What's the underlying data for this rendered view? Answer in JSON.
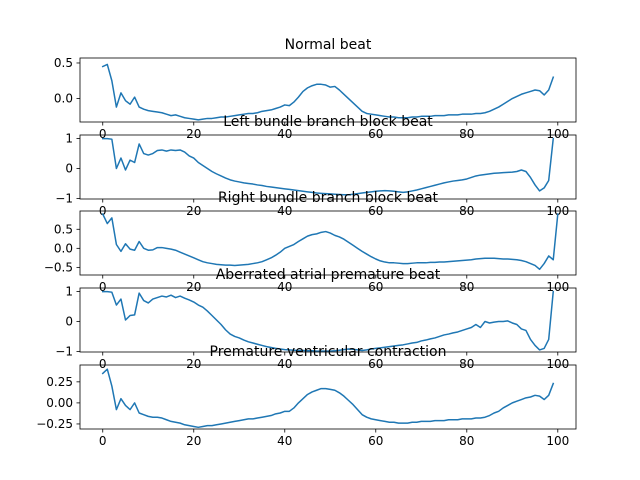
{
  "chart_data": [
    {
      "type": "line",
      "title": "Normal beat",
      "xlim": [
        -5,
        104
      ],
      "ylim": [
        -0.33,
        0.57
      ],
      "xticks": [
        0,
        20,
        40,
        60,
        80,
        100
      ],
      "xtick_labels": [
        "0",
        "20",
        "40",
        "60",
        "80",
        "100"
      ],
      "yticks": [
        0.5,
        0.0
      ],
      "ytick_labels": [
        "0.5",
        "0.0"
      ],
      "series": [
        {
          "values": [
            0.45,
            0.48,
            0.25,
            -0.12,
            0.08,
            -0.03,
            -0.08,
            0.02,
            -0.12,
            -0.15,
            -0.17,
            -0.18,
            -0.19,
            -0.2,
            -0.22,
            -0.24,
            -0.23,
            -0.25,
            -0.27,
            -0.28,
            -0.29,
            -0.3,
            -0.29,
            -0.28,
            -0.28,
            -0.27,
            -0.26,
            -0.26,
            -0.25,
            -0.24,
            -0.23,
            -0.22,
            -0.21,
            -0.21,
            -0.2,
            -0.18,
            -0.17,
            -0.16,
            -0.14,
            -0.12,
            -0.09,
            -0.1,
            -0.05,
            0.02,
            0.1,
            0.15,
            0.18,
            0.2,
            0.2,
            0.19,
            0.16,
            0.17,
            0.12,
            0.06,
            0.0,
            -0.06,
            -0.12,
            -0.18,
            -0.21,
            -0.22,
            -0.23,
            -0.24,
            -0.25,
            -0.26,
            -0.26,
            -0.27,
            -0.27,
            -0.27,
            -0.26,
            -0.26,
            -0.25,
            -0.25,
            -0.25,
            -0.24,
            -0.24,
            -0.24,
            -0.23,
            -0.23,
            -0.23,
            -0.22,
            -0.22,
            -0.22,
            -0.21,
            -0.21,
            -0.2,
            -0.18,
            -0.15,
            -0.12,
            -0.08,
            -0.04,
            0.0,
            0.03,
            0.06,
            0.08,
            0.1,
            0.12,
            0.11,
            0.05,
            0.12,
            0.3
          ]
        }
      ]
    },
    {
      "type": "line",
      "title": "Left bundle branch block beat",
      "xlim": [
        -5,
        104
      ],
      "ylim": [
        -1.02,
        1.12
      ],
      "xticks": [
        0,
        20,
        40,
        60,
        80,
        100
      ],
      "xtick_labels": [
        "0",
        "20",
        "40",
        "60",
        "80",
        "100"
      ],
      "yticks": [
        1,
        0,
        -1
      ],
      "ytick_labels": [
        "1",
        "0",
        "−1"
      ],
      "series": [
        {
          "values": [
            1.0,
            1.0,
            0.98,
            0.0,
            0.35,
            -0.05,
            0.28,
            0.2,
            0.82,
            0.5,
            0.45,
            0.5,
            0.6,
            0.62,
            0.58,
            0.62,
            0.6,
            0.62,
            0.55,
            0.42,
            0.35,
            0.2,
            0.1,
            0.0,
            -0.1,
            -0.18,
            -0.25,
            -0.32,
            -0.38,
            -0.42,
            -0.45,
            -0.48,
            -0.5,
            -0.52,
            -0.55,
            -0.57,
            -0.6,
            -0.62,
            -0.64,
            -0.66,
            -0.68,
            -0.7,
            -0.72,
            -0.74,
            -0.76,
            -0.78,
            -0.8,
            -0.82,
            -0.83,
            -0.84,
            -0.85,
            -0.86,
            -0.87,
            -0.88,
            -0.88,
            -0.86,
            -0.84,
            -0.82,
            -0.8,
            -0.78,
            -0.76,
            -0.75,
            -0.74,
            -0.75,
            -0.76,
            -0.78,
            -0.8,
            -0.78,
            -0.75,
            -0.72,
            -0.68,
            -0.64,
            -0.6,
            -0.56,
            -0.52,
            -0.48,
            -0.45,
            -0.42,
            -0.4,
            -0.38,
            -0.35,
            -0.3,
            -0.25,
            -0.22,
            -0.2,
            -0.18,
            -0.16,
            -0.15,
            -0.14,
            -0.13,
            -0.12,
            -0.1,
            -0.05,
            -0.1,
            -0.3,
            -0.55,
            -0.75,
            -0.65,
            -0.4,
            1.0
          ]
        }
      ]
    },
    {
      "type": "line",
      "title": "Right bundle branch block beat",
      "xlim": [
        -5,
        104
      ],
      "ylim": [
        -0.7,
        0.98
      ],
      "xticks": [
        0,
        20,
        40,
        60,
        80,
        100
      ],
      "xtick_labels": [
        "0",
        "20",
        "40",
        "60",
        "80",
        "100"
      ],
      "yticks": [
        0.5,
        0.0,
        -0.5
      ],
      "ytick_labels": [
        "0.5",
        "0.0",
        "−0.5"
      ],
      "series": [
        {
          "values": [
            0.9,
            0.65,
            0.8,
            0.1,
            -0.08,
            0.12,
            -0.02,
            -0.05,
            0.18,
            0.0,
            -0.05,
            -0.04,
            0.02,
            0.02,
            0.0,
            -0.02,
            -0.05,
            -0.1,
            -0.15,
            -0.2,
            -0.25,
            -0.3,
            -0.35,
            -0.38,
            -0.4,
            -0.42,
            -0.43,
            -0.44,
            -0.44,
            -0.45,
            -0.44,
            -0.43,
            -0.42,
            -0.4,
            -0.38,
            -0.35,
            -0.3,
            -0.25,
            -0.18,
            -0.1,
            0.0,
            0.05,
            0.1,
            0.18,
            0.25,
            0.32,
            0.36,
            0.38,
            0.42,
            0.44,
            0.4,
            0.34,
            0.3,
            0.24,
            0.16,
            0.08,
            0.0,
            -0.08,
            -0.15,
            -0.22,
            -0.28,
            -0.33,
            -0.36,
            -0.38,
            -0.38,
            -0.39,
            -0.4,
            -0.4,
            -0.39,
            -0.38,
            -0.38,
            -0.38,
            -0.37,
            -0.37,
            -0.36,
            -0.36,
            -0.35,
            -0.34,
            -0.33,
            -0.32,
            -0.31,
            -0.3,
            -0.28,
            -0.27,
            -0.26,
            -0.26,
            -0.26,
            -0.27,
            -0.28,
            -0.28,
            -0.29,
            -0.3,
            -0.32,
            -0.35,
            -0.4,
            -0.45,
            -0.55,
            -0.4,
            -0.2,
            -0.3,
            0.9
          ]
        }
      ]
    },
    {
      "type": "line",
      "title": "Aberrated atrial premature beat",
      "xlim": [
        -5,
        104
      ],
      "ylim": [
        -1.02,
        1.12
      ],
      "xticks": [
        0,
        20,
        40,
        60,
        80,
        100
      ],
      "xtick_labels": [
        "0",
        "20",
        "40",
        "60",
        "80",
        "100"
      ],
      "yticks": [
        1,
        0,
        -1
      ],
      "ytick_labels": [
        "1",
        "0",
        "−1"
      ],
      "series": [
        {
          "values": [
            1.0,
            1.0,
            0.98,
            0.55,
            0.75,
            0.05,
            0.2,
            0.22,
            0.95,
            0.7,
            0.62,
            0.75,
            0.8,
            0.85,
            0.82,
            0.88,
            0.8,
            0.85,
            0.78,
            0.72,
            0.65,
            0.55,
            0.48,
            0.35,
            0.2,
            0.05,
            -0.1,
            -0.28,
            -0.42,
            -0.5,
            -0.55,
            -0.62,
            -0.68,
            -0.72,
            -0.76,
            -0.8,
            -0.84,
            -0.87,
            -0.9,
            -0.92,
            -0.94,
            -0.95,
            -0.96,
            -0.97,
            -0.97,
            -0.98,
            -0.98,
            -0.99,
            -0.99,
            -0.99,
            -0.99,
            -0.98,
            -0.96,
            -0.94,
            -0.92,
            -0.93,
            -0.95,
            -0.97,
            -0.95,
            -0.92,
            -0.9,
            -0.88,
            -0.86,
            -0.84,
            -0.82,
            -0.8,
            -0.78,
            -0.75,
            -0.72,
            -0.7,
            -0.65,
            -0.62,
            -0.58,
            -0.55,
            -0.5,
            -0.45,
            -0.42,
            -0.38,
            -0.35,
            -0.3,
            -0.25,
            -0.2,
            -0.1,
            -0.2,
            0.0,
            -0.05,
            -0.02,
            0.0,
            0.0,
            0.02,
            -0.05,
            -0.1,
            -0.25,
            -0.3,
            -0.6,
            -0.8,
            -0.95,
            -0.9,
            -0.6,
            1.0
          ]
        }
      ]
    },
    {
      "type": "line",
      "title": "Premature ventricular contraction",
      "xlim": [
        -5,
        104
      ],
      "ylim": [
        -0.31,
        0.45
      ],
      "xticks": [
        0,
        20,
        40,
        60,
        80,
        100
      ],
      "xtick_labels": [
        "0",
        "20",
        "40",
        "60",
        "80",
        "100"
      ],
      "yticks": [
        0.25,
        0.0,
        -0.25
      ],
      "ytick_labels": [
        "0.25",
        "0.00",
        "−0.25"
      ],
      "series": [
        {
          "values": [
            0.35,
            0.4,
            0.2,
            -0.08,
            0.05,
            -0.03,
            -0.08,
            0.0,
            -0.12,
            -0.14,
            -0.16,
            -0.17,
            -0.17,
            -0.18,
            -0.2,
            -0.22,
            -0.23,
            -0.24,
            -0.26,
            -0.27,
            -0.28,
            -0.29,
            -0.28,
            -0.27,
            -0.27,
            -0.26,
            -0.25,
            -0.24,
            -0.23,
            -0.22,
            -0.21,
            -0.2,
            -0.19,
            -0.19,
            -0.18,
            -0.17,
            -0.16,
            -0.15,
            -0.13,
            -0.12,
            -0.1,
            -0.1,
            -0.06,
            0.0,
            0.05,
            0.1,
            0.13,
            0.15,
            0.17,
            0.17,
            0.16,
            0.15,
            0.12,
            0.08,
            0.03,
            -0.02,
            -0.08,
            -0.14,
            -0.17,
            -0.19,
            -0.2,
            -0.21,
            -0.22,
            -0.23,
            -0.23,
            -0.24,
            -0.24,
            -0.24,
            -0.23,
            -0.23,
            -0.22,
            -0.22,
            -0.22,
            -0.21,
            -0.21,
            -0.21,
            -0.2,
            -0.2,
            -0.2,
            -0.19,
            -0.19,
            -0.19,
            -0.18,
            -0.18,
            -0.17,
            -0.15,
            -0.12,
            -0.1,
            -0.06,
            -0.03,
            0.0,
            0.02,
            0.04,
            0.06,
            0.07,
            0.09,
            0.08,
            0.04,
            0.09,
            0.23
          ]
        }
      ]
    }
  ]
}
